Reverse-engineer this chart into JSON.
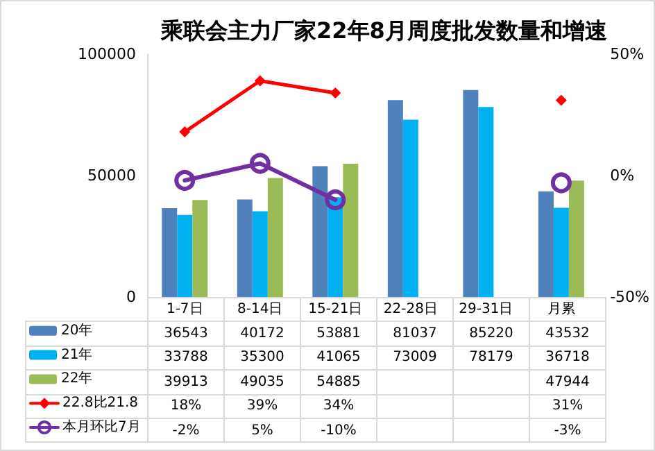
{
  "chart_data": {
    "type": "bar",
    "title": "乘联会主力厂家22年8月周度批发数量和增速",
    "categories": [
      "1-7日",
      "8-14日",
      "15-21日",
      "22-28日",
      "29-31日",
      "月累"
    ],
    "series": [
      {
        "name": "20年",
        "color": "#4f81bd",
        "values": [
          36543,
          40172,
          53881,
          81037,
          85220,
          43532
        ]
      },
      {
        "name": "21年",
        "color": "#00b0f0",
        "values": [
          33788,
          35300,
          41065,
          73009,
          78179,
          36718
        ]
      },
      {
        "name": "22年",
        "color": "#9bbb59",
        "values": [
          39913,
          49035,
          54885,
          null,
          null,
          47944
        ]
      },
      {
        "name": "22.8比21.8",
        "type": "line",
        "axis": "y2",
        "color": "#ff0000",
        "marker": "diamond",
        "values": [
          18,
          39,
          34,
          null,
          null,
          31
        ],
        "value_labels": [
          "18%",
          "39%",
          "34%",
          null,
          null,
          "31%"
        ]
      },
      {
        "name": "本月环比7月",
        "type": "line",
        "axis": "y2",
        "color": "#7030a0",
        "marker": "circle",
        "values": [
          -2,
          5,
          -10,
          null,
          null,
          -3
        ],
        "value_labels": [
          "-2%",
          "5%",
          "-10%",
          null,
          null,
          "-3%"
        ]
      }
    ],
    "ylim": [
      0,
      100000
    ],
    "yticks": [
      0,
      50000,
      100000
    ],
    "y2lim": [
      -50,
      50
    ],
    "y2ticks": [
      {
        "value": -50,
        "label": "-50%"
      },
      {
        "value": 0,
        "label": "0%"
      },
      {
        "value": 50,
        "label": "50%"
      }
    ],
    "data_labels": true,
    "legend": "bottom left",
    "grid": false
  }
}
